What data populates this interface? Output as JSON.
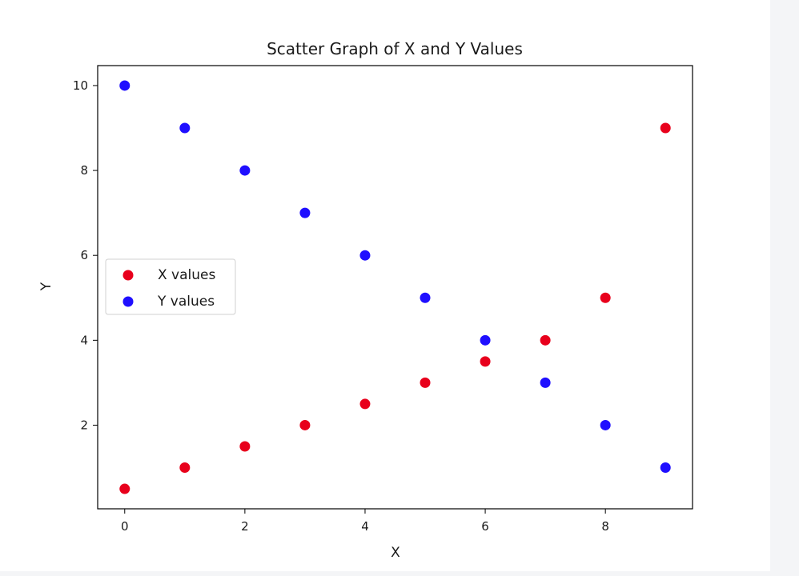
{
  "chart_data": {
    "type": "scatter",
    "title": "Scatter Graph of X and Y Values",
    "xlabel": "X",
    "ylabel": "Y",
    "xlim": [
      -0.45,
      9.45
    ],
    "ylim": [
      0.03,
      10.47
    ],
    "xticks": [
      0,
      2,
      4,
      6,
      8
    ],
    "xtick_labels": [
      "0",
      "2",
      "4",
      "6",
      "8"
    ],
    "yticks": [
      2,
      4,
      6,
      8,
      10
    ],
    "ytick_labels": [
      "2",
      "4",
      "6",
      "8",
      "10"
    ],
    "grid": false,
    "legend_position": "center-left",
    "series": [
      {
        "name": "X values",
        "color": "#e8001c",
        "x": [
          0,
          1,
          2,
          3,
          4,
          5,
          6,
          7,
          8,
          9
        ],
        "y": [
          0.5,
          1,
          1.5,
          2,
          2.5,
          3,
          3.5,
          4,
          5,
          9
        ]
      },
      {
        "name": "Y values",
        "color": "#1f0fff",
        "x": [
          0,
          1,
          2,
          3,
          4,
          5,
          6,
          7,
          8,
          9
        ],
        "y": [
          10,
          9,
          8,
          7,
          6,
          5,
          4,
          3,
          2,
          1
        ]
      }
    ]
  }
}
